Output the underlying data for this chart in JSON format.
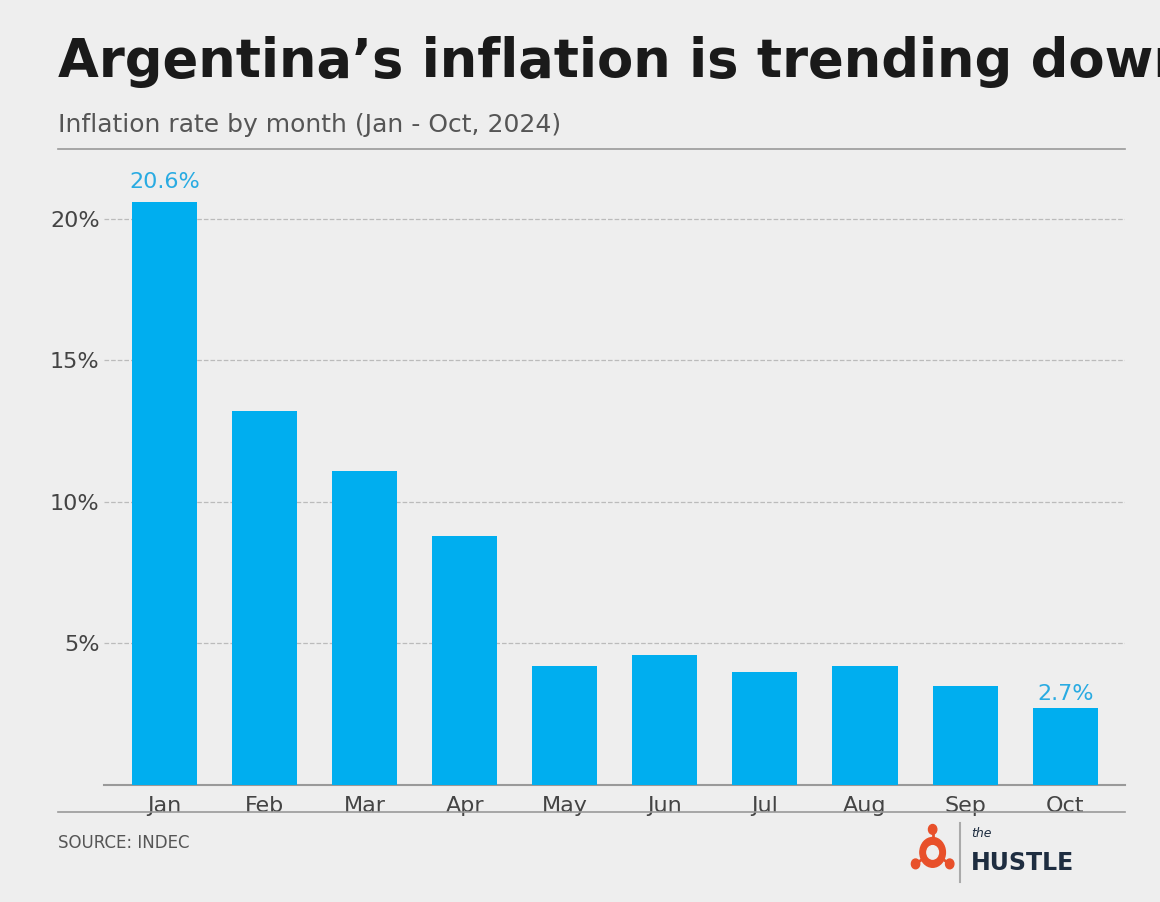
{
  "title": "Argentina’s inflation is trending downward",
  "subtitle": "Inflation rate by month (Jan - Oct, 2024)",
  "source": "SOURCE: INDEC",
  "categories": [
    "Jan",
    "Feb",
    "Mar",
    "Apr",
    "May",
    "Jun",
    "Jul",
    "Aug",
    "Sep",
    "Oct"
  ],
  "values": [
    20.6,
    13.2,
    11.1,
    8.8,
    4.2,
    4.6,
    4.0,
    4.2,
    3.5,
    2.7
  ],
  "bar_color": "#00AEEF",
  "label_color_highlight": "#29ABE2",
  "background_color": "#EEEEEE",
  "title_color": "#1a1a1a",
  "subtitle_color": "#555555",
  "axis_label_color": "#444444",
  "gridline_color": "#bbbbbb",
  "source_color": "#555555",
  "ylim": [
    0,
    22
  ],
  "yticks": [
    5,
    10,
    15,
    20
  ],
  "highlight_bars": [
    0,
    9
  ],
  "hustle_color": "#1e2d40",
  "hustle_orange": "#E8502A",
  "separator_color": "#999999"
}
